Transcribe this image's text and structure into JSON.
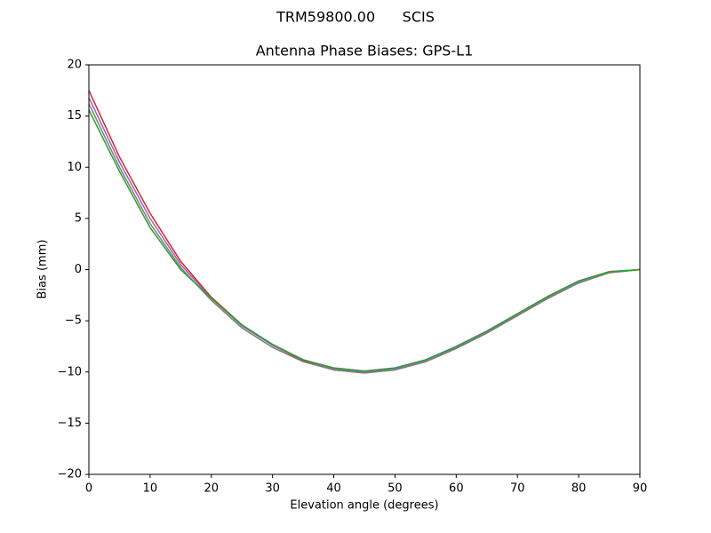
{
  "chart_data": {
    "type": "line",
    "suptitle": "TRM59800.00      SCIS",
    "title": "Antenna Phase Biases: GPS-L1",
    "xlabel": "Elevation angle (degrees)",
    "ylabel": "Bias (mm)",
    "x": [
      0,
      5,
      10,
      15,
      20,
      25,
      30,
      35,
      40,
      45,
      50,
      55,
      60,
      65,
      70,
      75,
      80,
      85,
      90
    ],
    "series": [
      {
        "color": "#d62728",
        "values": [
          17.5,
          11.0,
          5.5,
          0.8,
          -2.7,
          -5.4,
          -7.4,
          -8.9,
          -9.8,
          -10.1,
          -9.8,
          -9.0,
          -7.7,
          -6.2,
          -4.5,
          -2.8,
          -1.3,
          -0.3,
          0
        ]
      },
      {
        "color": "#9467bd",
        "values": [
          16.8,
          10.5,
          5.0,
          0.5,
          -2.8,
          -5.5,
          -7.4,
          -8.8,
          -9.7,
          -10.0,
          -9.7,
          -8.9,
          -7.6,
          -6.1,
          -4.4,
          -2.7,
          -1.2,
          -0.2,
          0
        ]
      },
      {
        "color": "#7f7f7f",
        "values": [
          16.2,
          10.0,
          4.5,
          0.2,
          -3.0,
          -5.7,
          -7.6,
          -9.0,
          -9.8,
          -10.1,
          -9.8,
          -9.0,
          -7.7,
          -6.2,
          -4.5,
          -2.8,
          -1.3,
          -0.3,
          0
        ]
      },
      {
        "color": "#2ca02c",
        "values": [
          15.6,
          9.6,
          4.1,
          0.0,
          -2.8,
          -5.4,
          -7.3,
          -8.8,
          -9.6,
          -9.9,
          -9.6,
          -8.8,
          -7.5,
          -6.0,
          -4.3,
          -2.6,
          -1.1,
          -0.2,
          0
        ]
      }
    ],
    "xlim": [
      0,
      90
    ],
    "xticks": [
      0,
      10,
      20,
      30,
      40,
      50,
      60,
      70,
      80,
      90
    ],
    "ylim": [
      -20,
      20
    ],
    "yticks": [
      {
        "value": -20,
        "label": "−20"
      },
      {
        "value": -15,
        "label": "−15"
      },
      {
        "value": -10,
        "label": "−10"
      },
      {
        "value": -5,
        "label": "−5"
      },
      0,
      5,
      10,
      15,
      20
    ],
    "grid": false
  }
}
